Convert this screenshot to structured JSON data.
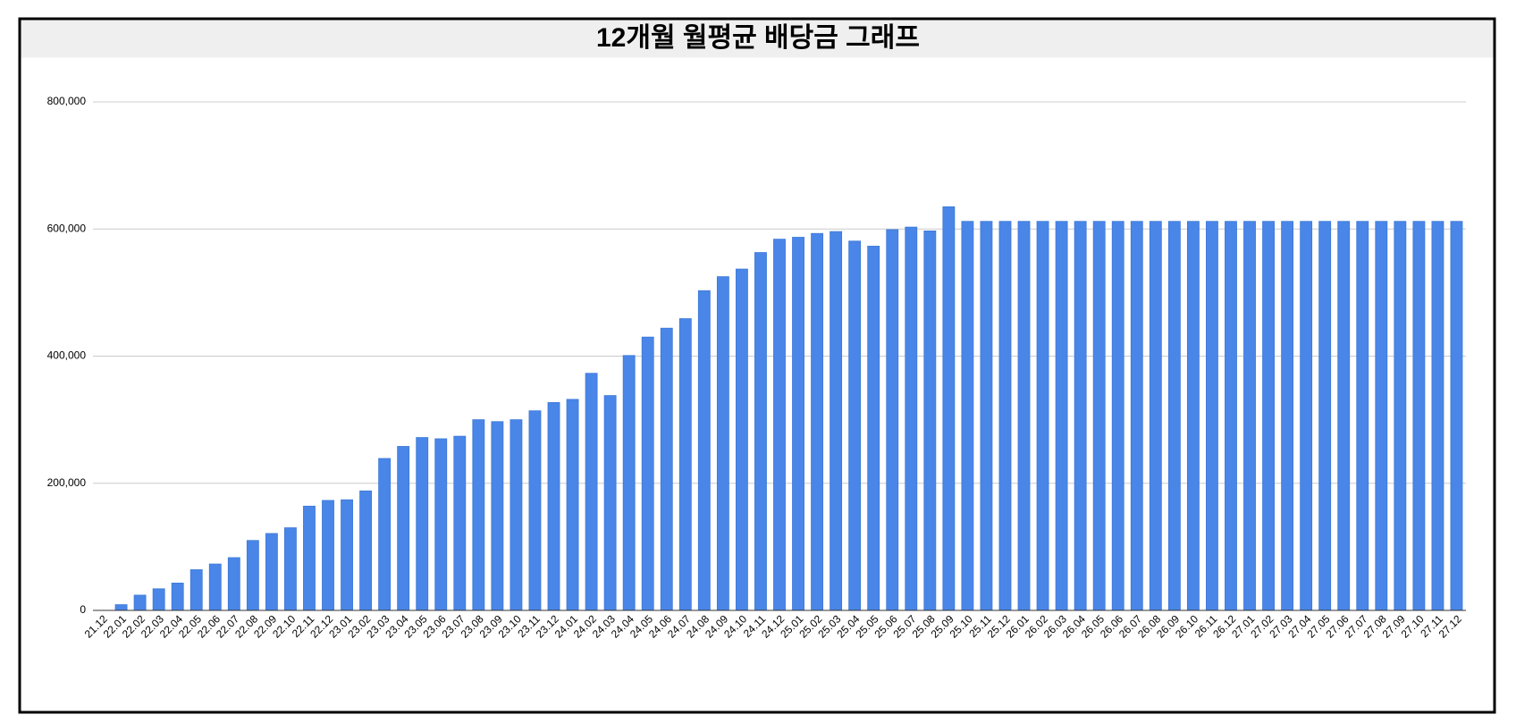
{
  "chart_data": {
    "type": "bar",
    "title": "12개월 월평균 배당금 그래프",
    "categories": [
      "21.12",
      "22.01",
      "22.02",
      "22.03",
      "22.04",
      "22.05",
      "22.06",
      "22.07",
      "22.08",
      "22.09",
      "22.10",
      "22.11",
      "22.12",
      "23.01",
      "23.02",
      "23.03",
      "23.04",
      "23.05",
      "23.06",
      "23.07",
      "23.08",
      "23.09",
      "23.10",
      "23.11",
      "23.12",
      "24.01",
      "24.02",
      "24.03",
      "24.04",
      "24.05",
      "24.06",
      "24.07",
      "24.08",
      "24.09",
      "24.10",
      "24.11",
      "24.12",
      "25.01",
      "25.02",
      "25.03",
      "25.04",
      "25.05",
      "25.06",
      "25.07",
      "25.08",
      "25.09",
      "25.10",
      "25.11",
      "25.12",
      "26.01",
      "26.02",
      "26.03",
      "26.04",
      "26.05",
      "26.06",
      "26.07",
      "26.08",
      "26.09",
      "26.10",
      "26.11",
      "26.12",
      "27.01",
      "27.02",
      "27.03",
      "27.04",
      "27.05",
      "27.06",
      "27.07",
      "27.08",
      "27.09",
      "27.10",
      "27.11",
      "27.12"
    ],
    "values": [
      0,
      9000,
      24000,
      34000,
      43000,
      64000,
      73000,
      83000,
      110000,
      121000,
      130000,
      164000,
      173000,
      174000,
      188000,
      239000,
      258000,
      272000,
      270000,
      274000,
      300000,
      297000,
      300000,
      314000,
      327000,
      332000,
      373000,
      338000,
      401000,
      430000,
      444000,
      459000,
      503000,
      525000,
      537000,
      563000,
      584000,
      587000,
      593000,
      596000,
      581000,
      573000,
      599000,
      603000,
      597000,
      635000,
      612000,
      612000,
      612000,
      612000,
      612000,
      612000,
      612000,
      612000,
      612000,
      612000,
      612000,
      612000,
      612000,
      612000,
      612000,
      612000,
      612000,
      612000,
      612000,
      612000,
      612000,
      612000,
      612000,
      612000,
      612000,
      612000,
      612000
    ],
    "color": "#4a86e8",
    "ylim": [
      0,
      800000
    ],
    "yticks": [
      0,
      {
        "value": 200000,
        "label": "200,000"
      },
      {
        "value": 400000,
        "label": "400,000"
      },
      {
        "value": 600000,
        "label": "600,000"
      },
      {
        "value": 800000,
        "label": "800,000"
      }
    ],
    "grid": true
  }
}
